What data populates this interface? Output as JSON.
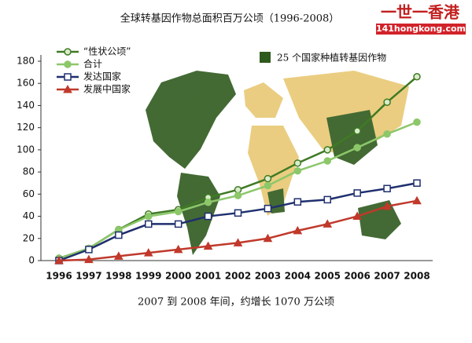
{
  "chart_data": {
    "type": "line",
    "title": "全球转基因作物总面积百万公顷（1996-2008）",
    "subtitle": "2007 到 2008 年间，约增长 1070 万公顷",
    "categories": [
      "1996",
      "1997",
      "1998",
      "1999",
      "2000",
      "2001",
      "2002",
      "2003",
      "2004",
      "2005",
      "2006",
      "2007",
      "2008"
    ],
    "series": [
      {
        "name": "“性状公顷”",
        "color": "#3f7a24",
        "marker": "circle",
        "values": [
          2,
          11,
          28,
          42,
          46,
          57,
          64,
          74,
          88,
          100,
          117,
          143,
          166
        ]
      },
      {
        "name": "合计",
        "color": "#8cc76a",
        "marker": "circle",
        "values": [
          1.7,
          11,
          27.8,
          39.9,
          44.2,
          52.6,
          58.7,
          67.7,
          81,
          90,
          102,
          114.3,
          125
        ]
      },
      {
        "name": "发达国家",
        "color": "#1f2f6e",
        "marker": "square",
        "values": [
          0,
          10,
          23,
          33,
          33,
          40,
          43,
          47,
          53,
          55,
          61,
          65,
          70
        ]
      },
      {
        "name": "发展中国家",
        "color": "#c0392b",
        "marker": "triangle",
        "values": [
          0,
          1,
          4,
          7,
          10,
          13,
          16,
          20,
          27,
          33,
          40,
          49,
          54
        ]
      }
    ],
    "map_legend": {
      "label": "25 个国家种植转基因作物",
      "color": "#2f5a1e"
    },
    "ylim": [
      0,
      180
    ],
    "yticks": [
      0,
      20,
      40,
      60,
      80,
      100,
      120,
      140,
      160,
      180
    ]
  },
  "watermark": {
    "title": "一世一香港",
    "url": "141hongkong.com"
  }
}
